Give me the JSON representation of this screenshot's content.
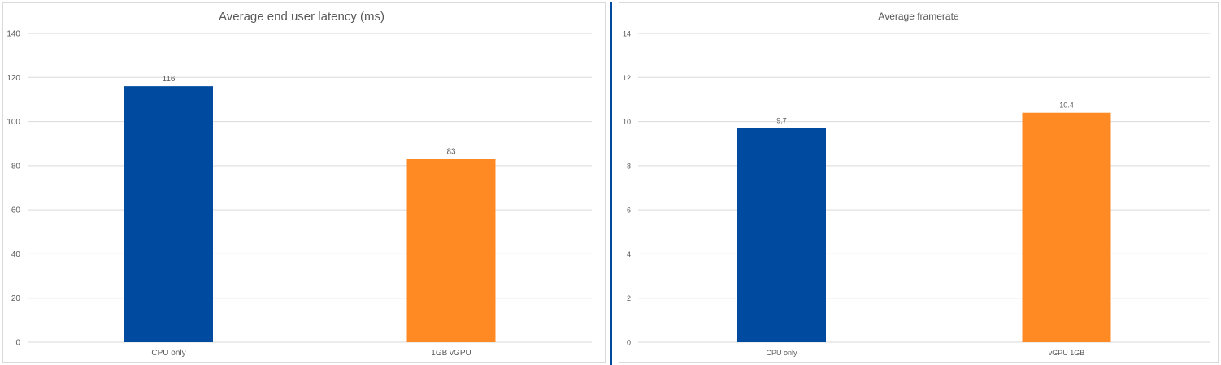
{
  "chart_data": [
    {
      "type": "bar",
      "title": "Average end user latency (ms)",
      "categories": [
        "CPU only",
        "1GB vGPU"
      ],
      "values": [
        116,
        83
      ],
      "data_labels": [
        "116",
        "83"
      ],
      "colors": [
        "#004B9F",
        "#FF8A24"
      ],
      "ylim": [
        0,
        140
      ],
      "yticks": [
        0,
        20,
        40,
        60,
        80,
        100,
        120,
        140
      ],
      "grid": true,
      "xlabel": "",
      "ylabel": ""
    },
    {
      "type": "bar",
      "title": "Average framerate",
      "categories": [
        "CPU only",
        "vGPU 1GB"
      ],
      "values": [
        9.7,
        10.4
      ],
      "data_labels": [
        "9.7",
        "10.4"
      ],
      "colors": [
        "#004B9F",
        "#FF8A24"
      ],
      "ylim": [
        0,
        14
      ],
      "yticks": [
        0,
        2,
        4,
        6,
        8,
        10,
        12,
        14
      ],
      "grid": true,
      "xlabel": "",
      "ylabel": ""
    }
  ],
  "divider_color": "#004B9F"
}
